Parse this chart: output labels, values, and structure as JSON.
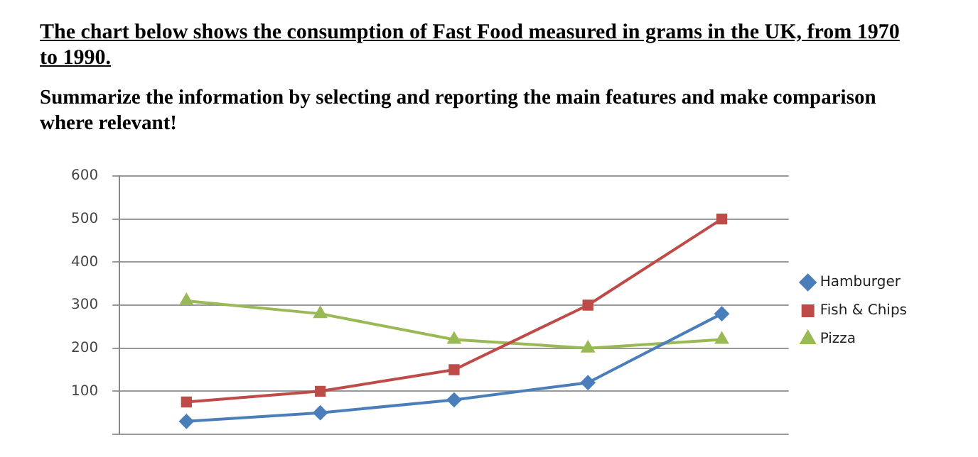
{
  "chart_data": {
    "type": "line",
    "title": "The chart below shows the consumption of Fast Food measured in grams  in the UK, from 1970 to 1990.",
    "subtitle": "Summarize the information by selecting and reporting the main features and make comparison where relevant!",
    "categories": [
      null,
      null,
      null,
      null,
      null
    ],
    "series": [
      {
        "name": "Hamburger",
        "color": "#4a7ebb",
        "marker": "diamond",
        "values": [
          30,
          50,
          80,
          120,
          280
        ]
      },
      {
        "name": "Fish & Chips",
        "color": "#be4b48",
        "marker": "square",
        "values": [
          75,
          100,
          150,
          300,
          500
        ]
      },
      {
        "name": "Pizza",
        "color": "#98b954",
        "marker": "triangle",
        "values": [
          310,
          280,
          220,
          200,
          220
        ]
      }
    ],
    "ylim": [
      0,
      600
    ],
    "yticks": [
      {
        "value": 0,
        "label": null
      },
      100,
      200,
      300,
      400,
      500,
      600
    ],
    "grid": "y",
    "legend": "right",
    "tick_labels": "y"
  }
}
